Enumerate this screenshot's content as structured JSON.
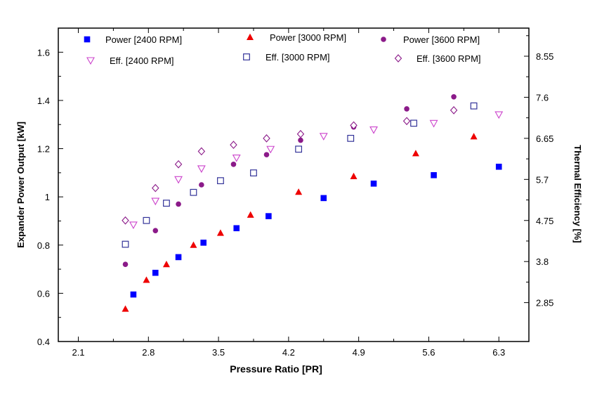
{
  "chart_data": {
    "type": "scatter",
    "title": "",
    "xlabel": "Pressure Ratio [PR]",
    "ylabel": "Expander Power Output [kW]",
    "y2label": "Thermal Efficiency [%]",
    "xlim": [
      1.9,
      6.6
    ],
    "ylim": [
      0.4,
      1.7
    ],
    "y2lim": [
      1.95,
      9.2
    ],
    "x_ticks": [
      "2.1",
      "2.8",
      "3.5",
      "4.2",
      "4.9",
      "5.6",
      "6.3"
    ],
    "y_ticks": [
      "0.4",
      "0.6",
      "0.8",
      "1",
      "1.2",
      "1.4",
      "1.6"
    ],
    "y2_ticks": [
      "2.85",
      "3.8",
      "4.75",
      "5.7",
      "6.65",
      "7.6",
      "8.55"
    ],
    "legend_position": "top",
    "series": [
      {
        "name": "Power [2400 RPM]",
        "axis": "left",
        "marker": "square-filled",
        "color": "#0000ff",
        "x": [
          2.65,
          2.87,
          3.1,
          3.35,
          3.68,
          4.0,
          4.55,
          5.05,
          5.65,
          6.3
        ],
        "y": [
          0.595,
          0.685,
          0.75,
          0.81,
          0.87,
          0.92,
          0.995,
          1.055,
          1.09,
          1.125
        ]
      },
      {
        "name": "Power [3000 RPM]",
        "axis": "left",
        "marker": "triangle-filled",
        "color": "#ee0000",
        "x": [
          2.57,
          2.78,
          2.98,
          3.25,
          3.52,
          3.82,
          4.3,
          4.85,
          5.47,
          6.05
        ],
        "y": [
          0.535,
          0.655,
          0.72,
          0.8,
          0.85,
          0.925,
          1.02,
          1.085,
          1.18,
          1.25
        ]
      },
      {
        "name": "Power [3600 RPM]",
        "axis": "left",
        "marker": "circle-filled",
        "color": "#8b1a89",
        "x": [
          2.57,
          2.87,
          3.1,
          3.33,
          3.65,
          3.98,
          4.32,
          4.85,
          5.38,
          5.85
        ],
        "y": [
          0.72,
          0.86,
          0.97,
          1.05,
          1.135,
          1.175,
          1.235,
          1.29,
          1.365,
          1.415
        ]
      },
      {
        "name": "Eff. [2400 RPM]",
        "axis": "right",
        "marker": "triangle-down-open",
        "color": "#cc44cc",
        "x": [
          2.65,
          2.87,
          3.1,
          3.33,
          3.68,
          4.02,
          4.55,
          5.05,
          5.65,
          6.3
        ],
        "y": [
          4.65,
          5.2,
          5.7,
          5.95,
          6.2,
          6.4,
          6.7,
          6.85,
          7.0,
          7.2
        ]
      },
      {
        "name": "Eff. [3000 RPM]",
        "axis": "right",
        "marker": "square-open",
        "color": "#333399",
        "x": [
          2.57,
          2.78,
          2.98,
          3.25,
          3.52,
          3.85,
          4.3,
          4.82,
          5.45,
          6.05
        ],
        "y": [
          4.2,
          4.75,
          5.15,
          5.4,
          5.67,
          5.85,
          6.4,
          6.65,
          7.0,
          7.4
        ]
      },
      {
        "name": "Eff. [3600 RPM]",
        "axis": "right",
        "marker": "diamond-open",
        "color": "#8b1a89",
        "x": [
          2.57,
          2.87,
          3.1,
          3.33,
          3.65,
          3.98,
          4.32,
          4.85,
          5.38,
          5.85
        ],
        "y": [
          4.75,
          5.5,
          6.05,
          6.35,
          6.5,
          6.65,
          6.75,
          6.95,
          7.05,
          7.3
        ]
      }
    ]
  }
}
